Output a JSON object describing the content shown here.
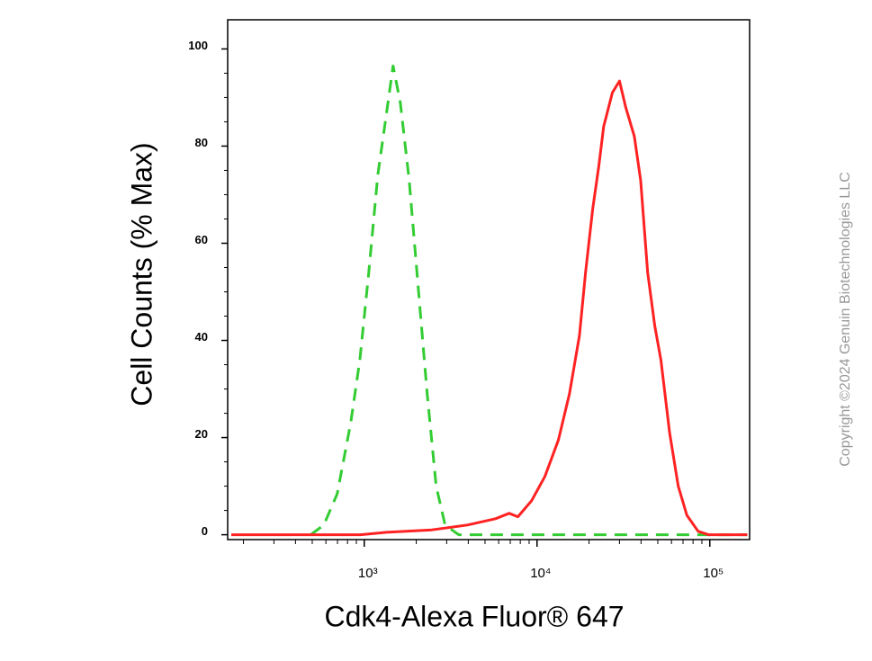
{
  "chart_data": {
    "type": "line",
    "xlabel": "Cdk4-Alexa Fluor® 647",
    "ylabel": "Cell Counts (% Max)",
    "watermark": "Copyright ©2024 Genuin Biotechnologies LLC",
    "xscale": "log",
    "xlim": [
      162,
      170000
    ],
    "ylim": [
      -1,
      106
    ],
    "xticks": [
      {
        "value": 1000,
        "label": "10³"
      },
      {
        "value": 10000,
        "label": "10⁴"
      },
      {
        "value": 100000,
        "label": "10⁵"
      }
    ],
    "xminorticks": [
      200,
      300,
      400,
      500,
      600,
      700,
      800,
      900,
      2000,
      3000,
      4000,
      5000,
      6000,
      7000,
      8000,
      9000,
      20000,
      30000,
      40000,
      50000,
      60000,
      70000,
      80000,
      90000
    ],
    "yticks": [
      0,
      20,
      40,
      60,
      80,
      100
    ],
    "yminorticks": [
      5,
      10,
      15,
      25,
      30,
      35,
      45,
      50,
      55,
      65,
      70,
      75,
      85,
      90,
      95
    ],
    "series": [
      {
        "color": "#33cc33",
        "dashed": true,
        "x": [
          490,
          583,
          697,
          835,
          943,
          1062,
          1197,
          1349,
          1468,
          1616,
          1821,
          2052,
          2313,
          2607,
          2938,
          3526,
          165000
        ],
        "values": [
          0,
          2,
          8.4,
          23,
          36,
          54,
          74,
          87,
          96.5,
          89,
          73,
          51,
          29,
          10,
          2,
          0,
          0
        ]
      },
      {
        "color": "#ff2222",
        "dashed": false,
        "x": [
          170,
          950,
          1349,
          2460,
          3950,
          5750,
          6900,
          7750,
          9300,
          11100,
          13300,
          15400,
          17600,
          19100,
          21000,
          22800,
          24300,
          27300,
          30000,
          32600,
          36600,
          39800,
          43700,
          48000,
          52100,
          58500,
          65700,
          73700,
          85600,
          98300,
          165000
        ],
        "values": [
          0,
          0,
          0.5,
          1,
          2,
          3.3,
          4.4,
          3.7,
          7,
          12,
          19.5,
          29,
          41,
          54,
          67,
          76,
          84,
          91,
          93.4,
          88,
          82,
          73,
          54,
          43,
          36,
          21,
          10,
          4,
          0.7,
          0,
          0
        ]
      }
    ]
  }
}
